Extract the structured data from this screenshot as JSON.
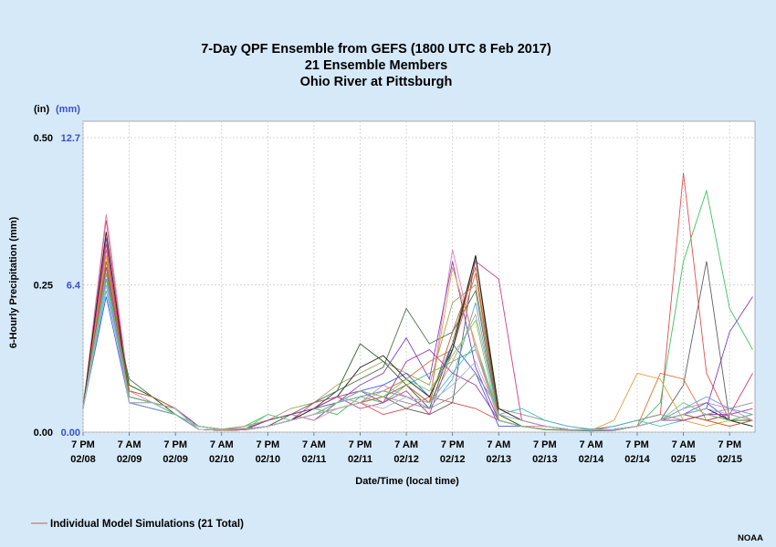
{
  "chart_data": {
    "type": "line",
    "title": [
      "7-Day QPF Ensemble from GEFS (1800 UTC 8 Feb 2017)",
      "21 Ensemble Members",
      "Ohio River at Pittsburgh"
    ],
    "xlabel": "Date/Time (local time)",
    "ylabel": "6-Hourly Precipitation (mm)",
    "y_unit_left": "(in)",
    "y_unit_right": "(mm)",
    "y_ticks_in": [
      "0.00",
      "0.25",
      "0.50"
    ],
    "y_ticks_mm": [
      "0.00",
      "6.4",
      "12.7"
    ],
    "ylim_in": [
      0,
      0.5
    ],
    "x_ticks": [
      {
        "t": 0,
        "line1": "7 PM",
        "line2": "02/08"
      },
      {
        "t": 2,
        "line1": "7 AM",
        "line2": "02/09"
      },
      {
        "t": 4,
        "line1": "7 PM",
        "line2": "02/09"
      },
      {
        "t": 6,
        "line1": "7 AM",
        "line2": "02/10"
      },
      {
        "t": 8,
        "line1": "7 PM",
        "line2": "02/10"
      },
      {
        "t": 10,
        "line1": "7 AM",
        "line2": "02/11"
      },
      {
        "t": 12,
        "line1": "7 PM",
        "line2": "02/11"
      },
      {
        "t": 14,
        "line1": "7 AM",
        "line2": "02/12"
      },
      {
        "t": 16,
        "line1": "7 PM",
        "line2": "02/12"
      },
      {
        "t": 18,
        "line1": "7 AM",
        "line2": "02/13"
      },
      {
        "t": 20,
        "line1": "7 PM",
        "line2": "02/13"
      },
      {
        "t": 22,
        "line1": "7 AM",
        "line2": "02/14"
      },
      {
        "t": 24,
        "line1": "7 PM",
        "line2": "02/14"
      },
      {
        "t": 26,
        "line1": "7 AM",
        "line2": "02/15"
      },
      {
        "t": 28,
        "line1": "7 PM",
        "line2": "02/15"
      }
    ],
    "x_range": [
      0,
      29.1
    ],
    "series": [
      {
        "color": "#e05050",
        "values": [
          0.04,
          0.36,
          0.06,
          0.05,
          0.04,
          0.005,
          0.003,
          0.004,
          0.01,
          0.02,
          0.03,
          0.04,
          0.05,
          0.03,
          0.04,
          0.06,
          0.05,
          0.04,
          0.02,
          0.01,
          0.005,
          0.004,
          0.003,
          0.01,
          0.02,
          0.03,
          0.44,
          0.1,
          0.02,
          0.03
        ]
      },
      {
        "color": "#40c060",
        "values": [
          0.05,
          0.3,
          0.08,
          0.06,
          0.03,
          0.01,
          0.005,
          0.01,
          0.03,
          0.02,
          0.04,
          0.03,
          0.06,
          0.05,
          0.08,
          0.1,
          0.12,
          0.14,
          0.03,
          0.01,
          0.005,
          0.004,
          0.003,
          0.005,
          0.01,
          0.05,
          0.29,
          0.41,
          0.21,
          0.14
        ]
      },
      {
        "color": "#606060",
        "values": [
          0.04,
          0.27,
          0.05,
          0.04,
          0.03,
          0.005,
          0.004,
          0.006,
          0.02,
          0.03,
          0.02,
          0.05,
          0.07,
          0.06,
          0.04,
          0.03,
          0.05,
          0.3,
          0.02,
          0.01,
          0.004,
          0.003,
          0.002,
          0.003,
          0.01,
          0.02,
          0.08,
          0.29,
          0.02,
          0.03
        ]
      },
      {
        "color": "#e080c0",
        "values": [
          0.04,
          0.37,
          0.07,
          0.05,
          0.04,
          0.005,
          0.004,
          0.01,
          0.02,
          0.03,
          0.02,
          0.04,
          0.05,
          0.08,
          0.06,
          0.05,
          0.31,
          0.14,
          0.02,
          0.01,
          0.01,
          0.005,
          0.003,
          0.004,
          0.01,
          0.02,
          0.04,
          0.05,
          0.04,
          0.02
        ]
      },
      {
        "color": "#8040c0",
        "values": [
          0.04,
          0.33,
          0.05,
          0.04,
          0.03,
          0.005,
          0.003,
          0.004,
          0.02,
          0.03,
          0.04,
          0.05,
          0.08,
          0.1,
          0.16,
          0.09,
          0.29,
          0.11,
          0.02,
          0.01,
          0.005,
          0.004,
          0.002,
          0.003,
          0.01,
          0.02,
          0.03,
          0.04,
          0.17,
          0.23
        ]
      },
      {
        "color": "#a0a060",
        "values": [
          0.04,
          0.28,
          0.07,
          0.06,
          0.04,
          0.01,
          0.005,
          0.01,
          0.02,
          0.04,
          0.05,
          0.08,
          0.1,
          0.12,
          0.1,
          0.08,
          0.22,
          0.25,
          0.03,
          0.01,
          0.005,
          0.004,
          0.003,
          0.004,
          0.01,
          0.02,
          0.03,
          0.02,
          0.01,
          0.02
        ]
      },
      {
        "color": "#507050",
        "values": [
          0.04,
          0.26,
          0.09,
          0.06,
          0.04,
          0.005,
          0.004,
          0.005,
          0.02,
          0.03,
          0.05,
          0.07,
          0.09,
          0.11,
          0.21,
          0.15,
          0.17,
          0.24,
          0.02,
          0.01,
          0.005,
          0.004,
          0.003,
          0.004,
          0.01,
          0.02,
          0.03,
          0.02,
          0.03,
          0.02
        ]
      },
      {
        "color": "#e07040",
        "values": [
          0.04,
          0.31,
          0.06,
          0.05,
          0.04,
          0.005,
          0.003,
          0.004,
          0.01,
          0.02,
          0.03,
          0.05,
          0.06,
          0.07,
          0.09,
          0.12,
          0.14,
          0.27,
          0.02,
          0.01,
          0.005,
          0.004,
          0.003,
          0.005,
          0.01,
          0.1,
          0.09,
          0.02,
          0.03,
          0.02
        ]
      },
      {
        "color": "#4060e0",
        "values": [
          0.04,
          0.23,
          0.05,
          0.05,
          0.04,
          0.01,
          0.005,
          0.004,
          0.01,
          0.02,
          0.03,
          0.05,
          0.07,
          0.08,
          0.1,
          0.06,
          0.15,
          0.1,
          0.01,
          0.01,
          0.005,
          0.004,
          0.003,
          0.004,
          0.01,
          0.02,
          0.03,
          0.05,
          0.02,
          0.03
        ]
      },
      {
        "color": "#c0a080",
        "values": [
          0.05,
          0.29,
          0.06,
          0.05,
          0.03,
          0.005,
          0.004,
          0.005,
          0.01,
          0.02,
          0.04,
          0.06,
          0.05,
          0.07,
          0.06,
          0.05,
          0.12,
          0.2,
          0.03,
          0.02,
          0.01,
          0.005,
          0.004,
          0.005,
          0.01,
          0.02,
          0.02,
          0.03,
          0.02,
          0.02
        ]
      },
      {
        "color": "#909090",
        "values": [
          0.04,
          0.25,
          0.05,
          0.04,
          0.03,
          0.005,
          0.003,
          0.004,
          0.01,
          0.02,
          0.03,
          0.04,
          0.05,
          0.06,
          0.05,
          0.04,
          0.06,
          0.1,
          0.04,
          0.03,
          0.02,
          0.01,
          0.005,
          0.01,
          0.02,
          0.03,
          0.02,
          0.03,
          0.04,
          0.05
        ]
      },
      {
        "color": "#d04080",
        "values": [
          0.04,
          0.32,
          0.06,
          0.05,
          0.03,
          0.005,
          0.004,
          0.005,
          0.01,
          0.02,
          0.05,
          0.06,
          0.04,
          0.05,
          0.07,
          0.03,
          0.14,
          0.29,
          0.26,
          0.02,
          0.01,
          0.005,
          0.004,
          0.005,
          0.01,
          0.02,
          0.03,
          0.02,
          0.03,
          0.1
        ]
      },
      {
        "color": "#306030",
        "values": [
          0.04,
          0.27,
          0.08,
          0.06,
          0.03,
          0.005,
          0.003,
          0.004,
          0.01,
          0.03,
          0.04,
          0.07,
          0.15,
          0.12,
          0.08,
          0.04,
          0.15,
          0.3,
          0.03,
          0.01,
          0.005,
          0.004,
          0.003,
          0.004,
          0.01,
          0.02,
          0.02,
          0.03,
          0.02,
          0.02
        ]
      },
      {
        "color": "#40c0c0",
        "values": [
          0.04,
          0.24,
          0.06,
          0.05,
          0.04,
          0.01,
          0.005,
          0.006,
          0.01,
          0.02,
          0.03,
          0.04,
          0.05,
          0.06,
          0.08,
          0.05,
          0.1,
          0.15,
          0.03,
          0.04,
          0.02,
          0.01,
          0.005,
          0.01,
          0.02,
          0.01,
          0.02,
          0.03,
          0.02,
          0.01
        ]
      },
      {
        "color": "#e0a040",
        "values": [
          0.04,
          0.3,
          0.05,
          0.05,
          0.03,
          0.005,
          0.004,
          0.005,
          0.01,
          0.02,
          0.03,
          0.05,
          0.06,
          0.07,
          0.06,
          0.05,
          0.28,
          0.15,
          0.02,
          0.01,
          0.005,
          0.004,
          0.003,
          0.02,
          0.1,
          0.09,
          0.02,
          0.01,
          0.02,
          0.03
        ]
      },
      {
        "color": "#202020",
        "values": [
          0.04,
          0.34,
          0.06,
          0.05,
          0.04,
          0.005,
          0.003,
          0.004,
          0.01,
          0.02,
          0.04,
          0.06,
          0.11,
          0.13,
          0.09,
          0.06,
          0.14,
          0.3,
          0.04,
          0.02,
          0.01,
          0.005,
          0.004,
          0.005,
          0.01,
          0.02,
          0.03,
          0.04,
          0.02,
          0.01
        ]
      },
      {
        "color": "#a040a0",
        "values": [
          0.04,
          0.28,
          0.06,
          0.05,
          0.04,
          0.01,
          0.005,
          0.006,
          0.02,
          0.03,
          0.04,
          0.06,
          0.07,
          0.05,
          0.12,
          0.14,
          0.1,
          0.08,
          0.02,
          0.01,
          0.005,
          0.004,
          0.003,
          0.005,
          0.01,
          0.02,
          0.02,
          0.03,
          0.03,
          0.04
        ]
      },
      {
        "color": "#60a0e0",
        "values": [
          0.04,
          0.26,
          0.05,
          0.04,
          0.03,
          0.005,
          0.004,
          0.005,
          0.01,
          0.02,
          0.03,
          0.05,
          0.06,
          0.07,
          0.06,
          0.04,
          0.09,
          0.22,
          0.02,
          0.01,
          0.005,
          0.004,
          0.003,
          0.004,
          0.01,
          0.02,
          0.04,
          0.06,
          0.04,
          0.03
        ]
      },
      {
        "color": "#c06030",
        "values": [
          0.04,
          0.29,
          0.07,
          0.06,
          0.04,
          0.005,
          0.003,
          0.004,
          0.01,
          0.02,
          0.03,
          0.04,
          0.05,
          0.06,
          0.08,
          0.05,
          0.17,
          0.28,
          0.02,
          0.01,
          0.005,
          0.004,
          0.003,
          0.004,
          0.01,
          0.02,
          0.03,
          0.02,
          0.01,
          0.02
        ]
      },
      {
        "color": "#70d070",
        "values": [
          0.04,
          0.27,
          0.06,
          0.05,
          0.03,
          0.01,
          0.005,
          0.005,
          0.03,
          0.02,
          0.03,
          0.05,
          0.07,
          0.06,
          0.09,
          0.07,
          0.13,
          0.19,
          0.02,
          0.01,
          0.005,
          0.004,
          0.003,
          0.004,
          0.01,
          0.02,
          0.05,
          0.03,
          0.02,
          0.03
        ]
      },
      {
        "color": "#b0b0d0",
        "values": [
          0.04,
          0.25,
          0.05,
          0.05,
          0.04,
          0.005,
          0.004,
          0.005,
          0.01,
          0.02,
          0.03,
          0.04,
          0.05,
          0.04,
          0.06,
          0.05,
          0.08,
          0.12,
          0.03,
          0.02,
          0.01,
          0.005,
          0.004,
          0.005,
          0.01,
          0.02,
          0.03,
          0.04,
          0.03,
          0.02
        ]
      }
    ],
    "legend": {
      "label": "Individual Model Simulations (21 Total)",
      "color": "#e05050",
      "placement": "bottom-left"
    },
    "grid": true
  },
  "credit": "NOAA"
}
